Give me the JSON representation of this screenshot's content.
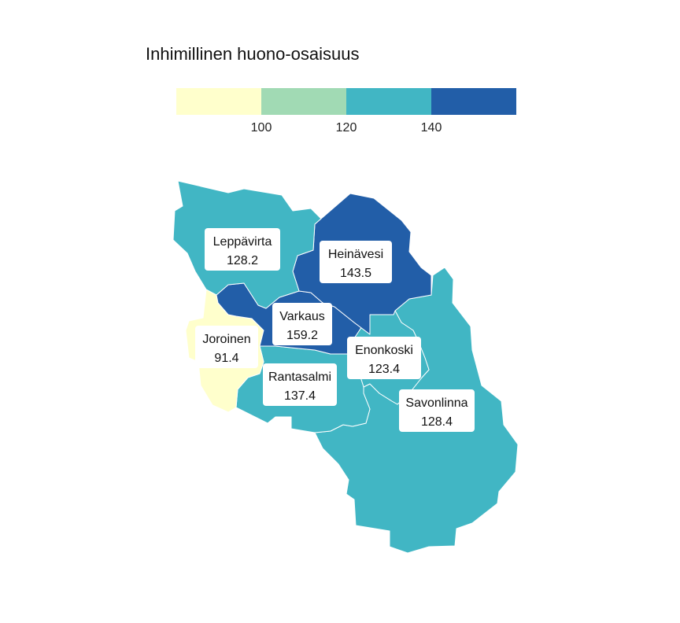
{
  "title": "Inhimillinen huono-osaisuus",
  "legend": {
    "colors": [
      "#ffffcc",
      "#a1dab4",
      "#41b6c4",
      "#225ea8"
    ],
    "breaks": [
      "100",
      "120",
      "140"
    ]
  },
  "regions": [
    {
      "name": "Leppävirta",
      "value": "128.2",
      "color": "#41b6c4"
    },
    {
      "name": "Heinävesi",
      "value": "143.5",
      "color": "#225ea8"
    },
    {
      "name": "Varkaus",
      "value": "159.2",
      "color": "#225ea8"
    },
    {
      "name": "Joroinen",
      "value": "91.4",
      "color": "#ffffcc"
    },
    {
      "name": "Enonkoski",
      "value": "123.4",
      "color": "#41b6c4"
    },
    {
      "name": "Rantasalmi",
      "value": "137.4",
      "color": "#41b6c4"
    },
    {
      "name": "Savonlinna",
      "value": "128.4",
      "color": "#41b6c4"
    }
  ]
}
